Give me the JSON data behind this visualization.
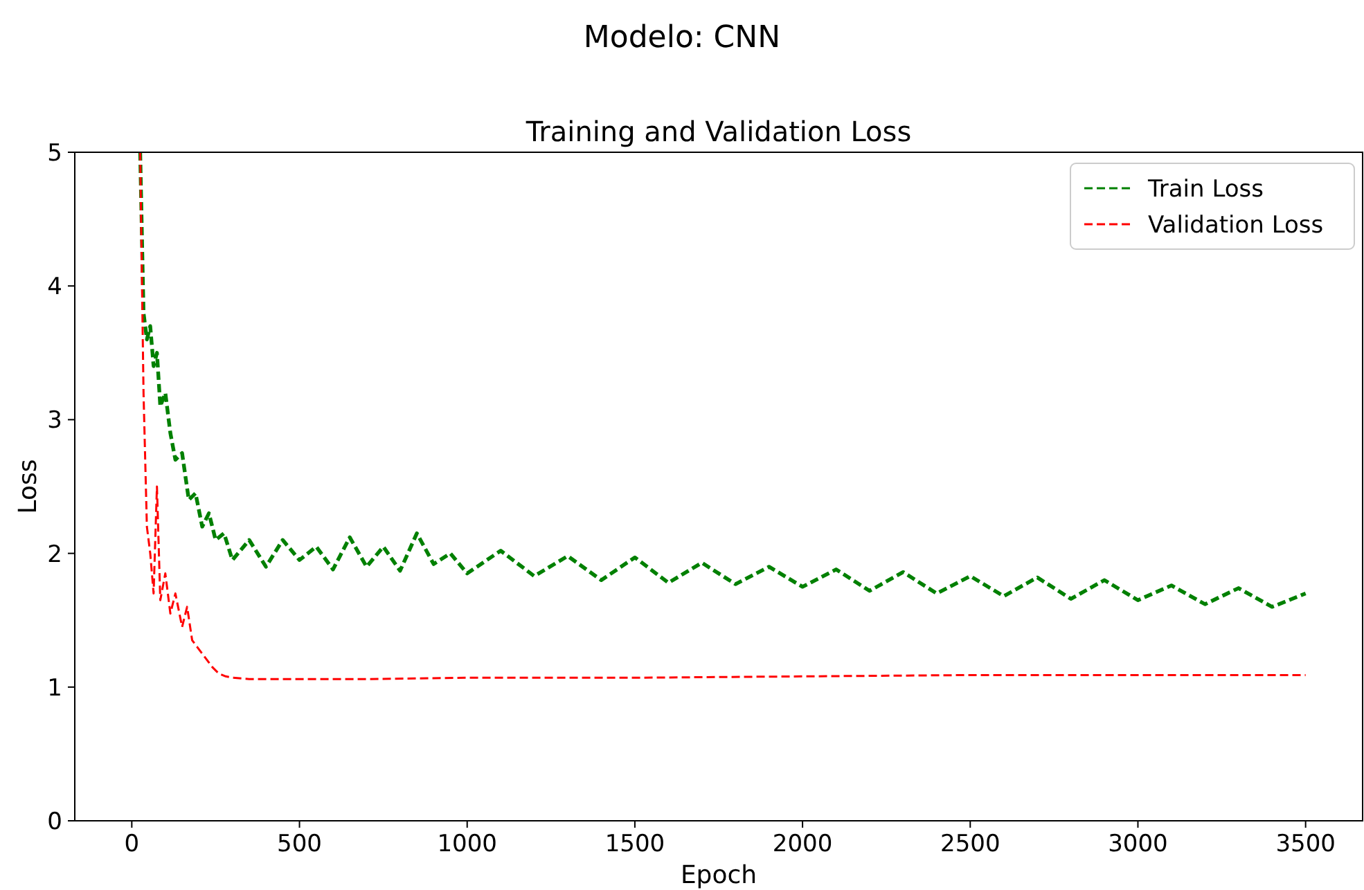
{
  "chart_data": {
    "type": "line",
    "title": "Modelo: CNN",
    "subtitle": "Training and Validation Loss",
    "xlabel": "Epoch",
    "ylabel": "Loss",
    "xlim": [
      -170,
      3670
    ],
    "ylim": [
      0,
      5
    ],
    "xticks": [
      0,
      500,
      1000,
      1500,
      2000,
      2500,
      3000,
      3500
    ],
    "yticks": [
      0,
      1,
      2,
      3,
      4,
      5
    ],
    "grid": false,
    "legend": "top right",
    "line_style": "dashed",
    "marker": "none",
    "series": [
      {
        "name": "Train Loss",
        "color": "#008000",
        "x": [
          25,
          35,
          45,
          55,
          65,
          75,
          85,
          100,
          115,
          130,
          150,
          170,
          190,
          210,
          230,
          250,
          275,
          300,
          350,
          400,
          450,
          500,
          550,
          600,
          650,
          700,
          750,
          800,
          850,
          900,
          950,
          1000,
          1100,
          1200,
          1300,
          1400,
          1500,
          1600,
          1700,
          1800,
          1900,
          2000,
          2100,
          2200,
          2300,
          2400,
          2500,
          2600,
          2700,
          2800,
          2900,
          3000,
          3100,
          3200,
          3300,
          3400,
          3500
        ],
        "values": [
          5.0,
          3.8,
          3.6,
          3.7,
          3.4,
          3.5,
          3.1,
          3.2,
          2.9,
          2.7,
          2.75,
          2.4,
          2.45,
          2.2,
          2.3,
          2.1,
          2.15,
          1.95,
          2.1,
          1.9,
          2.1,
          1.95,
          2.05,
          1.88,
          2.12,
          1.9,
          2.05,
          1.87,
          2.15,
          1.92,
          2.0,
          1.85,
          2.02,
          1.83,
          1.98,
          1.8,
          1.97,
          1.78,
          1.93,
          1.77,
          1.9,
          1.75,
          1.88,
          1.72,
          1.86,
          1.7,
          1.83,
          1.68,
          1.82,
          1.66,
          1.8,
          1.65,
          1.76,
          1.62,
          1.74,
          1.6,
          1.7
        ]
      },
      {
        "name": "Validation Loss",
        "color": "#ff0000",
        "x": [
          25,
          35,
          45,
          55,
          65,
          75,
          85,
          100,
          115,
          130,
          150,
          165,
          180,
          195,
          210,
          225,
          240,
          260,
          280,
          300,
          350,
          400,
          500,
          700,
          1000,
          1500,
          2000,
          2500,
          3000,
          3500
        ],
        "values": [
          5.0,
          3.2,
          2.2,
          2.0,
          1.7,
          2.5,
          1.65,
          1.85,
          1.55,
          1.7,
          1.45,
          1.6,
          1.35,
          1.3,
          1.25,
          1.2,
          1.15,
          1.1,
          1.08,
          1.07,
          1.06,
          1.06,
          1.06,
          1.06,
          1.07,
          1.07,
          1.08,
          1.09,
          1.09,
          1.09
        ]
      }
    ]
  }
}
